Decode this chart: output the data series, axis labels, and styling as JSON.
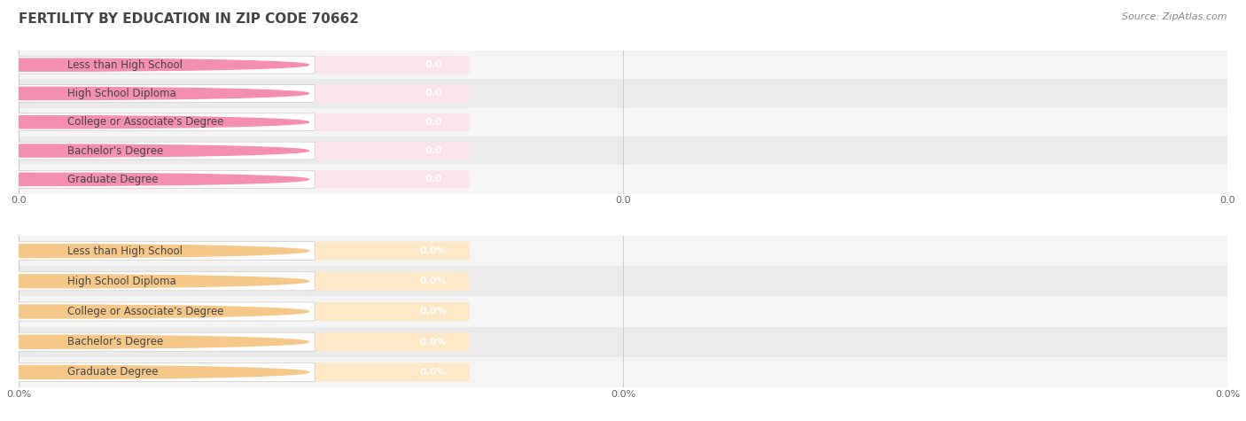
{
  "title": "FERTILITY BY EDUCATION IN ZIP CODE 70662",
  "source": "Source: ZipAtlas.com",
  "categories": [
    "Less than High School",
    "High School Diploma",
    "College or Associate's Degree",
    "Bachelor's Degree",
    "Graduate Degree"
  ],
  "values_top": [
    0.0,
    0.0,
    0.0,
    0.0,
    0.0
  ],
  "values_bottom": [
    0.0,
    0.0,
    0.0,
    0.0,
    0.0
  ],
  "bar_color_top": "#f48fb1",
  "bar_bg_color_top": "#fce4ec",
  "bar_color_bottom": "#f5c88a",
  "bar_bg_color_bottom": "#fde8c8",
  "tick_labels_top": [
    "0.0",
    "0.0",
    "0.0"
  ],
  "tick_labels_bottom": [
    "0.0%",
    "0.0%",
    "0.0%"
  ],
  "background_color": "#ffffff",
  "row_bg_odd": "#f5f5f5",
  "row_bg_even": "#ebebeb",
  "grid_color": "#cccccc",
  "title_fontsize": 11,
  "source_fontsize": 8,
  "tick_fontsize": 8,
  "label_fontsize": 8.5,
  "value_fontsize": 8
}
